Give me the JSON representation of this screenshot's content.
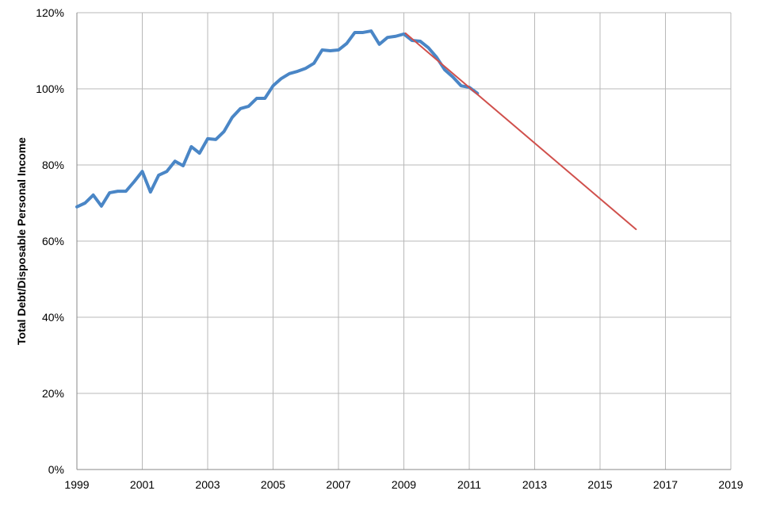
{
  "chart_data": {
    "type": "line",
    "y_label": "Total Debt/Disposable Personal Income",
    "xlim": [
      1999,
      2019
    ],
    "xticks": [
      1999,
      2001,
      2003,
      2005,
      2007,
      2009,
      2011,
      2013,
      2015,
      2017,
      2019
    ],
    "ylim": [
      0,
      120
    ],
    "yticks": [
      {
        "value": 0,
        "label": "0%"
      },
      {
        "value": 20,
        "label": "20%"
      },
      {
        "value": 40,
        "label": "40%"
      },
      {
        "value": 60,
        "label": "60%"
      },
      {
        "value": 80,
        "label": "80%"
      },
      {
        "value": 100,
        "label": "100%"
      },
      {
        "value": 120,
        "label": "120%"
      }
    ],
    "grid": true,
    "series": [
      {
        "color": "#4a86c6",
        "width": 4,
        "x": [
          1999.0,
          1999.25,
          1999.5,
          1999.75,
          2000.0,
          2000.25,
          2000.5,
          2000.75,
          2001.0,
          2001.25,
          2001.5,
          2001.75,
          2002.0,
          2002.25,
          2002.5,
          2002.75,
          2003.0,
          2003.25,
          2003.5,
          2003.75,
          2004.0,
          2004.25,
          2004.5,
          2004.75,
          2005.0,
          2005.25,
          2005.5,
          2005.75,
          2006.0,
          2006.25,
          2006.5,
          2006.75,
          2007.0,
          2007.25,
          2007.5,
          2007.75,
          2008.0,
          2008.25,
          2008.5,
          2008.75,
          2009.0,
          2009.25,
          2009.5,
          2009.75,
          2010.0,
          2010.25,
          2010.5,
          2010.75,
          2011.0,
          2011.25
        ],
        "values": [
          69.0,
          70.0,
          72.1,
          69.2,
          72.7,
          73.1,
          73.1,
          75.6,
          78.3,
          72.9,
          77.3,
          78.3,
          81.0,
          79.8,
          84.8,
          83.1,
          86.9,
          86.7,
          88.8,
          92.5,
          94.8,
          95.4,
          97.5,
          97.5,
          100.8,
          102.7,
          104.0,
          104.6,
          105.4,
          106.7,
          110.2,
          110.0,
          110.2,
          111.9,
          114.8,
          114.8,
          115.2,
          111.7,
          113.5,
          113.8,
          114.4,
          112.7,
          112.5,
          110.8,
          108.3,
          105.0,
          103.1,
          100.8,
          100.4,
          98.8
        ]
      },
      {
        "color": "#d0504c",
        "width": 2,
        "x": [
          2009.05,
          2016.1
        ],
        "values": [
          114.6,
          63.1
        ]
      }
    ]
  }
}
